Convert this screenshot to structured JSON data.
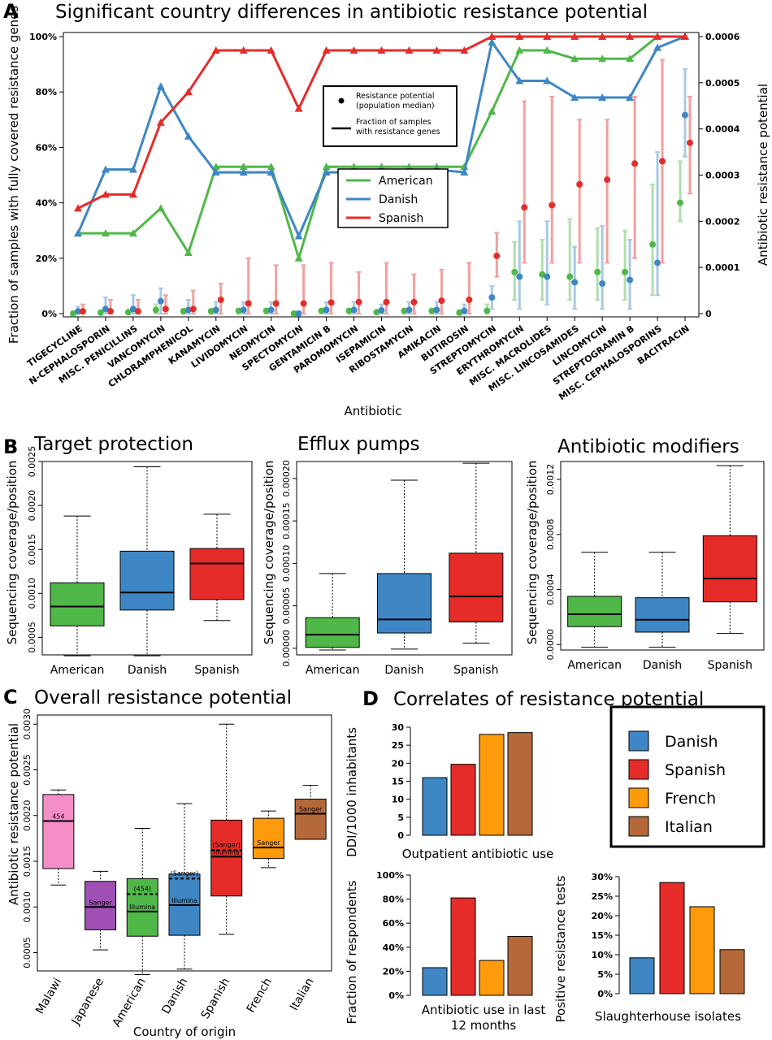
{
  "panels": {
    "A": "A",
    "B": "B",
    "C": "C",
    "D": "D"
  },
  "colors": {
    "American": "#4fb848",
    "Danish": "#3f86c4",
    "Spanish": "#e52c28",
    "French": "#ff9a0a",
    "Italian": "#b5693a",
    "Malawi": "#f58ec7",
    "Japanese": "#a050b4"
  },
  "chart_data": [
    {
      "id": "A",
      "type": "line",
      "title": "Significant country differences in antibiotic resistance potential",
      "xlabel": "Antibiotic",
      "ylabel": "Fraction of samples with fully covered resistance genes",
      "y2label": "Antibiotic resistance potential",
      "ylim": [
        0,
        100
      ],
      "yticks": [
        "0%",
        "20%",
        "40%",
        "60%",
        "80%",
        "100%"
      ],
      "y2lim": [
        0,
        0.0006
      ],
      "y2ticks": [
        "0",
        "0.0001",
        "0.0002",
        "0.0003",
        "0.0004",
        "0.0005",
        "0.0006"
      ],
      "categories": [
        "TIGECYCLINE",
        "N-CEPHALOSPORIN",
        "MISC. PENICILLINS",
        "VANCOMYCIN",
        "CHLORAMPHENICOL",
        "KANAMYCIN",
        "LIVIDOMYCIN",
        "NEOMYCIN",
        "SPECTOMYCIN",
        "GENTAMICIN B",
        "PAROMOMYCIN",
        "ISEPAMICIN",
        "RIBOSTAMYCIN",
        "AMIKACIN",
        "BUTIROSIN",
        "STREPTOMYCIN",
        "ERYTHROMYCIN",
        "MISC. MACROLIDES",
        "MISC. LINCOSAMIDES",
        "LINCOMYCIN",
        "STREPTOGRAMIN B",
        "MISC. CEPHALOSPORINS",
        "BACITRACIN"
      ],
      "series": [
        {
          "name": "American",
          "fraction": [
            29,
            29,
            29,
            38,
            22,
            53,
            53,
            53,
            20,
            53,
            53,
            53,
            53,
            53,
            53,
            73,
            95,
            95,
            92,
            92,
            92,
            100,
            100
          ],
          "median": [
            0,
            2e-06,
            3e-06,
            8e-06,
            5e-06,
            5e-06,
            6e-06,
            6e-06,
            0,
            6e-06,
            6e-06,
            3e-06,
            6e-06,
            6e-06,
            2e-06,
            6e-06,
            9e-05,
            8.5e-05,
            8e-05,
            9e-05,
            9e-05,
            0.00015,
            0.00024
          ],
          "low": [
            0,
            0,
            0,
            0,
            0,
            0,
            0,
            0,
            0,
            0,
            0,
            0,
            0,
            0,
            0,
            0,
            3e-05,
            3e-05,
            3e-05,
            3e-05,
            3e-05,
            4e-05,
            0.0002
          ],
          "high": [
            5e-06,
            8e-06,
            8e-06,
            2e-05,
            1e-05,
            1e-05,
            1e-05,
            1e-05,
            5e-06,
            1e-05,
            1e-05,
            8e-06,
            1e-05,
            1e-05,
            8e-06,
            2e-05,
            0.000155,
            0.00016,
            0.000205,
            0.000185,
            0.00018,
            0.00028,
            0.00033
          ]
        },
        {
          "name": "Danish",
          "fraction": [
            29,
            52,
            52,
            82,
            64,
            51,
            51,
            51,
            28,
            51,
            51,
            52,
            51,
            52,
            51,
            98,
            84,
            84,
            78,
            78,
            78,
            96,
            100
          ],
          "median": [
            5e-06,
            1e-05,
            1e-05,
            2.7e-05,
            8e-06,
            8e-06,
            8e-06,
            8e-06,
            0,
            8e-06,
            8e-06,
            7e-06,
            8e-06,
            8e-06,
            6e-06,
            3.5e-05,
            8e-05,
            8e-05,
            6.8e-05,
            6.5e-05,
            7.3e-05,
            0.00011,
            0.00043
          ],
          "low": [
            0,
            0,
            0,
            0,
            0,
            0,
            0,
            0,
            0,
            0,
            0,
            0,
            0,
            0,
            0,
            1e-05,
            1e-05,
            2e-05,
            1e-05,
            1e-05,
            1e-05,
            4e-05,
            0.00034
          ],
          "high": [
            1.5e-05,
            3.5e-05,
            4e-05,
            5.5e-05,
            3e-05,
            2.5e-05,
            2.5e-05,
            2.5e-05,
            5e-06,
            2.5e-05,
            2.5e-05,
            2e-05,
            2.5e-05,
            2.5e-05,
            2e-05,
            6e-05,
            0.0002,
            0.0002,
            0.000145,
            0.00019,
            0.00016,
            0.00035,
            0.00053
          ]
        },
        {
          "name": "Spanish",
          "fraction": [
            38,
            43,
            43,
            69,
            80,
            95,
            95,
            95,
            74,
            95,
            95,
            95,
            95,
            95,
            95,
            100,
            100,
            100,
            100,
            100,
            100,
            100,
            100
          ],
          "median": [
            5e-06,
            5e-06,
            5e-06,
            1e-05,
            1e-05,
            3e-05,
            2.2e-05,
            2.2e-05,
            2.2e-05,
            2.4e-05,
            2.5e-05,
            2.5e-05,
            2.5e-05,
            2.8e-05,
            3e-05,
            0.000125,
            0.00023,
            0.000235,
            0.00028,
            0.00029,
            0.000325,
            0.00033,
            0.00037
          ],
          "low": [
            0,
            0,
            0,
            0,
            0,
            0,
            0,
            0,
            0,
            0,
            0,
            0,
            0,
            0,
            0,
            8e-05,
            0.00011,
            0.00011,
            0.00011,
            0.00011,
            0.00012,
            0.00011,
            0.00026
          ],
          "high": [
            2e-05,
            3e-05,
            3e-05,
            4e-05,
            5e-05,
            6.5e-05,
            0.00012,
            0.000105,
            0.000105,
            0.00011,
            9e-05,
            0.00011,
            8.5e-05,
            9.5e-05,
            0.00011,
            0.000175,
            0.00046,
            0.00047,
            0.00042,
            0.00042,
            0.00047,
            0.00055,
            0.00047
          ]
        }
      ],
      "legend": {
        "point_label": "Resistance potential (population median)",
        "line_label": "Fraction of samples with resistance genes",
        "countries": [
          "American",
          "Danish",
          "Spanish"
        ]
      }
    },
    {
      "id": "B1",
      "type": "box",
      "title": "Target protection",
      "ylabel": "Sequencing coverage/position",
      "ylim": [
        0.0003,
        0.0025
      ],
      "yticks": [
        "0.0005",
        "0.0010",
        "0.0015",
        "0.0020",
        "0.0025"
      ],
      "ytickvals": [
        0.0005,
        0.001,
        0.0015,
        0.002,
        0.0025
      ],
      "categories": [
        "American",
        "Danish",
        "Spanish"
      ],
      "boxes": [
        {
          "min": 0.00029,
          "q1": 0.00063,
          "median": 0.00085,
          "q3": 0.00112,
          "max": 0.00188
        },
        {
          "min": 0.00029,
          "q1": 0.00081,
          "median": 0.00101,
          "q3": 0.00148,
          "max": 0.00244
        },
        {
          "min": 0.00069,
          "q1": 0.00093,
          "median": 0.00134,
          "q3": 0.00151,
          "max": 0.0019
        }
      ]
    },
    {
      "id": "B2",
      "type": "box",
      "title": "Efflux pumps",
      "ylabel": "Sequencing coverage/position",
      "ylim": [
        -7.8e-06,
        0.00022
      ],
      "yticks": [
        "0.00000",
        "0.00005",
        "0.00010",
        "0.00015",
        "0.00020"
      ],
      "ytickvals": [
        0,
        5e-05,
        0.0001,
        0.00015,
        0.0002
      ],
      "categories": [
        "American",
        "Danish",
        "Spanish"
      ],
      "boxes": [
        {
          "min": -2e-06,
          "q1": 1e-06,
          "median": 1.6e-05,
          "q3": 3.6e-05,
          "max": 8.8e-05
        },
        {
          "min": -1e-06,
          "q1": 1.8e-05,
          "median": 3.4e-05,
          "q3": 8.8e-05,
          "max": 0.000198
        },
        {
          "min": 6e-06,
          "q1": 3.1e-05,
          "median": 6.1e-05,
          "q3": 0.000112,
          "max": 0.000218
        }
      ]
    },
    {
      "id": "B3",
      "type": "box",
      "title": "Antibiotic modifiers",
      "ylabel": "Sequencing coverage/position",
      "ylim": [
        -4e-05,
        0.00133
      ],
      "yticks": [
        "0.0000",
        "0.0004",
        "0.0008",
        "0.0012"
      ],
      "ytickvals": [
        0,
        0.0004,
        0.0008,
        0.0012
      ],
      "categories": [
        "American",
        "Danish",
        "Spanish"
      ],
      "boxes": [
        {
          "min": -2e-05,
          "q1": 0.00013,
          "median": 0.00022,
          "q3": 0.00035,
          "max": 0.00067
        },
        {
          "min": -2e-05,
          "q1": 9e-05,
          "median": 0.00018,
          "q3": 0.00034,
          "max": 0.00067
        },
        {
          "min": 8e-05,
          "q1": 0.00031,
          "median": 0.00048,
          "q3": 0.00079,
          "max": 0.0013
        }
      ]
    },
    {
      "id": "C",
      "type": "box",
      "title": "Overall resistance potential",
      "xlabel": "Country of origin",
      "ylabel": "Antibiotic resistance potential",
      "ylim": [
        0.0003,
        0.0031
      ],
      "yticks": [
        "0.0005",
        "0.0010",
        "0.0015",
        "0.0020",
        "0.0025",
        "0.0030"
      ],
      "ytickvals": [
        0.0005,
        0.001,
        0.0015,
        0.002,
        0.0025,
        0.003
      ],
      "categories": [
        "Malawi",
        "Japanese",
        "American",
        "Danish",
        "Spanish",
        "French",
        "Italian"
      ],
      "boxes": [
        {
          "min": 0.00124,
          "q1": 0.00142,
          "median": 0.00194,
          "q3": 0.00223,
          "max": 0.00228,
          "labels": [
            "454"
          ]
        },
        {
          "min": 0.00053,
          "q1": 0.00075,
          "median": 0.001,
          "q3": 0.00128,
          "max": 0.00139,
          "labels": [
            "Sanger"
          ]
        },
        {
          "min": 0.00026,
          "q1": 0.00068,
          "median": 0.00095,
          "q3": 0.00131,
          "max": 0.00186,
          "alt": 0.00114,
          "labels": [
            "(454)",
            "Illumina"
          ]
        },
        {
          "min": 0.00032,
          "q1": 0.00069,
          "median": 0.00102,
          "q3": 0.00136,
          "max": 0.00213,
          "alt": 0.00131,
          "labels": [
            "(Sanger)",
            "Illumina"
          ]
        },
        {
          "min": 0.0007,
          "q1": 0.00112,
          "median": 0.00155,
          "q3": 0.00195,
          "max": 0.003,
          "alt": 0.00162,
          "labels": [
            "(Sanger)",
            "Illumina"
          ]
        },
        {
          "min": 0.00143,
          "q1": 0.00153,
          "median": 0.00165,
          "q3": 0.00197,
          "max": 0.00205,
          "labels": [
            "Sanger"
          ]
        },
        {
          "min": 0.00174,
          "q1": 0.00174,
          "median": 0.00202,
          "q3": 0.00218,
          "max": 0.00233,
          "labels": [
            "Sanger"
          ]
        }
      ]
    },
    {
      "id": "D",
      "type": "bar",
      "title": "Correlates of resistance potential",
      "legend": [
        "Danish",
        "Spanish",
        "French",
        "Italian"
      ],
      "subplots": [
        {
          "xlabel": "Outpatient antibiotic use",
          "ylabel": "DDI/1000 inhabitants",
          "ylim": [
            0,
            30
          ],
          "yticks": [
            "0",
            "5",
            "10",
            "15",
            "20",
            "25",
            "30"
          ],
          "values": [
            16,
            19.7,
            28,
            28.5
          ]
        },
        {
          "xlabel": "Antibiotic use in last 12 months",
          "ylabel": "Fraction of respondents",
          "ylim": [
            0,
            100
          ],
          "yticks": [
            "0%",
            "20%",
            "40%",
            "60%",
            "80%",
            "100%"
          ],
          "values": [
            23,
            81,
            29,
            49
          ]
        },
        {
          "xlabel": "Slaughterhouse isolates",
          "ylabel": "Positive resistance tests",
          "ylim": [
            0,
            30
          ],
          "yticks": [
            "0%",
            "5%",
            "10%",
            "15%",
            "20%",
            "25%",
            "30%"
          ],
          "values": [
            9.2,
            28.5,
            22.3,
            11.3
          ]
        }
      ]
    }
  ]
}
